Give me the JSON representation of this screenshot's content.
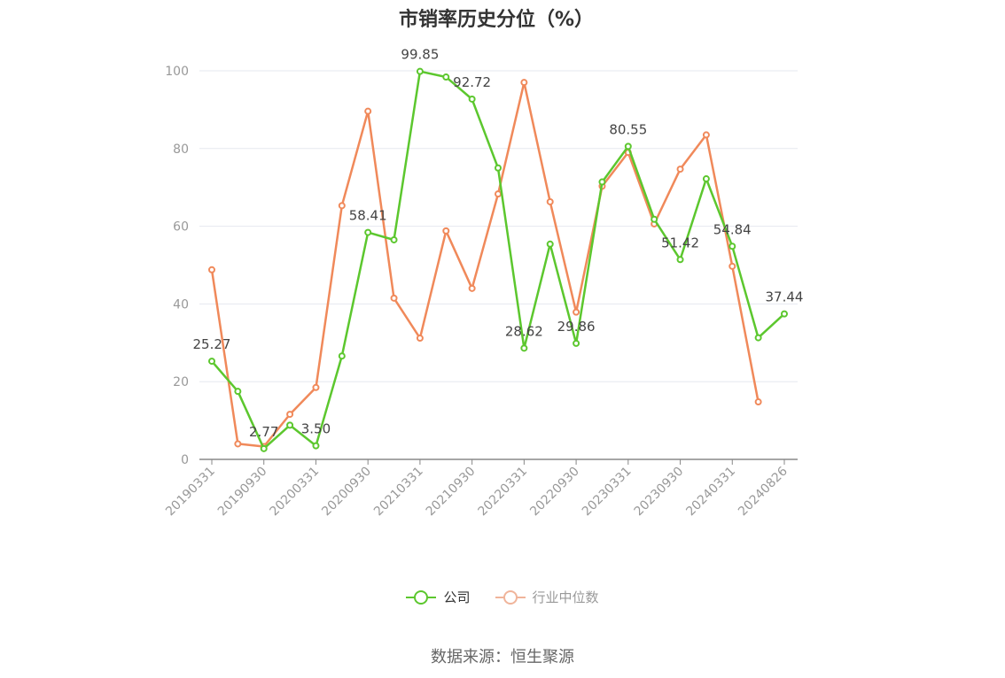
{
  "chart_data": {
    "type": "line",
    "title": "市销率历史分位（%）",
    "ylim": [
      0,
      100
    ],
    "yticks": [
      0,
      20,
      40,
      60,
      80,
      100
    ],
    "grid": true,
    "legend_position": "bottom",
    "x": [
      "20190331",
      "20190630",
      "20190930",
      "20191231",
      "20200331",
      "20200630",
      "20200930",
      "20201231",
      "20210331",
      "20210630",
      "20210930",
      "20211231",
      "20220331",
      "20220630",
      "20220930",
      "20221231",
      "20230331",
      "20230630",
      "20230930",
      "20231231",
      "20240331",
      "20240630",
      "20240826"
    ],
    "x_tick_labels": [
      "20190331",
      "20190930",
      "20200331",
      "20200930",
      "20210331",
      "20210930",
      "20220331",
      "20220930",
      "20230331",
      "20230930",
      "20240331",
      "20240826"
    ],
    "series": [
      {
        "name": "公司",
        "color": "#5cc72e",
        "values": [
          25.27,
          17.5,
          2.77,
          8.8,
          3.5,
          26.6,
          58.41,
          56.5,
          99.85,
          98.4,
          92.72,
          75.0,
          28.62,
          55.4,
          29.86,
          71.4,
          80.55,
          61.8,
          51.42,
          72.2,
          54.84,
          31.3,
          37.44
        ],
        "labels": {
          "0": "25.27",
          "2": "2.77",
          "4": "3.50",
          "6": "58.41",
          "8": "99.85",
          "10": "92.72",
          "12": "28.62",
          "14": "29.86",
          "16": "80.55",
          "18": "51.42",
          "20": "54.84",
          "22": "37.44"
        }
      },
      {
        "name": "行业中位数",
        "color": "#f0895a",
        "values": [
          48.8,
          4.0,
          3.3,
          11.6,
          18.5,
          65.3,
          89.6,
          41.5,
          31.2,
          58.8,
          44.0,
          68.3,
          97.0,
          66.3,
          37.9,
          70.3,
          79.0,
          60.6,
          74.7,
          83.5,
          49.7,
          14.8,
          null
        ]
      }
    ]
  },
  "legend": {
    "items": [
      {
        "label": "公司",
        "color": "#5cc72e"
      },
      {
        "label": "行业中位数",
        "color": "#f0b49a"
      }
    ]
  },
  "source": "数据来源：恒生聚源"
}
